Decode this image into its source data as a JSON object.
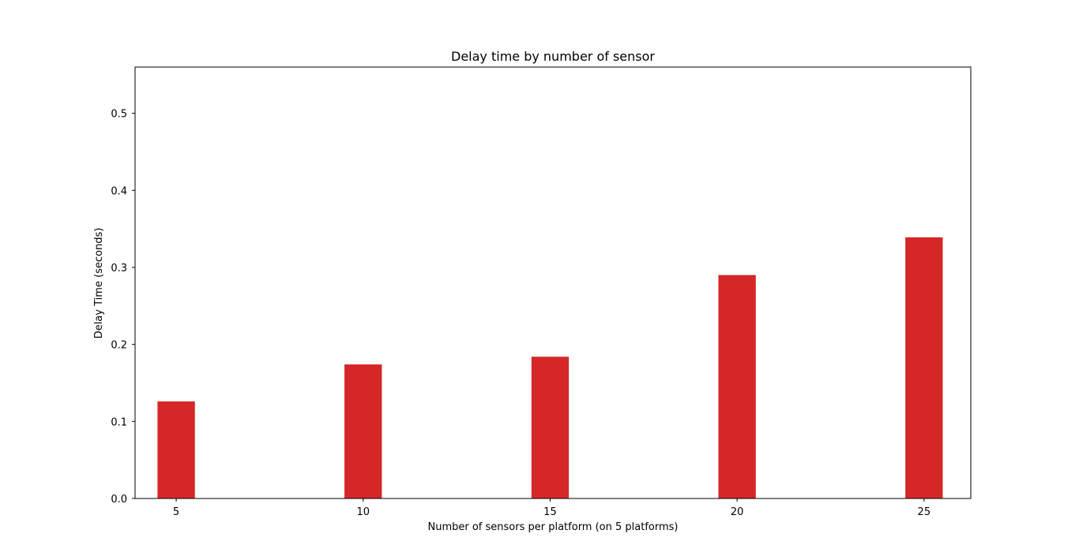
{
  "chart_data": {
    "type": "bar",
    "title": "Delay time by number of sensor",
    "xlabel": "Number of sensors per platform (on 5 platforms)",
    "ylabel": "Delay Time (seconds)",
    "categories": [
      "5",
      "10",
      "15",
      "20",
      "25"
    ],
    "x": [
      5,
      10,
      15,
      20,
      25
    ],
    "values": [
      0.126,
      0.174,
      0.184,
      0.29,
      0.339
    ],
    "xlim": [
      3.9,
      26.25
    ],
    "ylim": [
      0.0,
      0.56
    ],
    "yticks": [
      "0.0",
      "0.1",
      "0.2",
      "0.3",
      "0.4",
      "0.5"
    ],
    "bar_color": "#d62728",
    "grid": false,
    "legend": "none"
  }
}
